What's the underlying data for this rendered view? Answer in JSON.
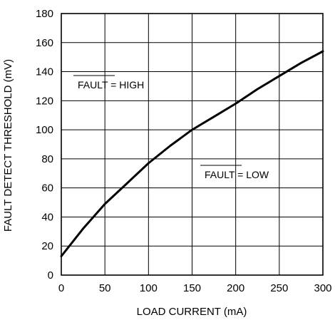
{
  "chart_data": {
    "type": "line",
    "xlabel": "LOAD CURRENT (mA)",
    "ylabel": "FAULT DETECT THRESHOLD (mV)",
    "xlim": [
      0,
      300
    ],
    "ylim": [
      0,
      180
    ],
    "xticks": [
      0,
      50,
      100,
      150,
      200,
      250,
      300
    ],
    "yticks": [
      0,
      20,
      40,
      60,
      80,
      100,
      120,
      140,
      160,
      180
    ],
    "grid": true,
    "series": [
      {
        "x": [
          0,
          25,
          50,
          75,
          100,
          125,
          150,
          175,
          200,
          225,
          250,
          275,
          300
        ],
        "values": [
          13,
          32,
          49,
          63,
          77,
          89,
          100,
          109,
          118,
          128,
          137,
          146,
          154
        ]
      }
    ],
    "annotations": [
      {
        "text": "FAULT = HIGH",
        "overline": "FAULT"
      },
      {
        "text": "FAULT = LOW",
        "overline": "FAULT"
      }
    ]
  }
}
